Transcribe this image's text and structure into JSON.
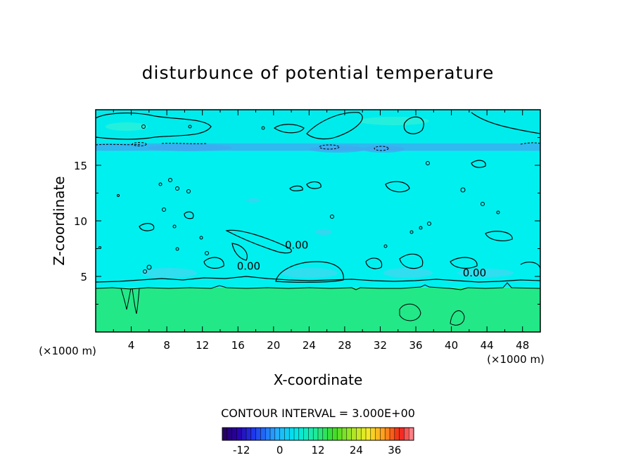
{
  "chart_data": {
    "type": "heatmap",
    "title": "disturbunce of potential temperature",
    "xlabel": "X-coordinate",
    "ylabel": "Z-coordinate",
    "x_unit": "(×1000 m)",
    "y_unit": "(×1000 m)",
    "xlim": [
      0,
      50
    ],
    "ylim": [
      0,
      20
    ],
    "x_ticks": [
      4,
      8,
      12,
      16,
      20,
      24,
      28,
      32,
      36,
      40,
      44,
      48
    ],
    "y_ticks": [
      5,
      10,
      15
    ],
    "contour_interval_label": "CONTOUR INTERVAL = 3.000E+00",
    "contour_labels": [
      {
        "text": "0.00",
        "x": 22.6,
        "z": 7.5
      },
      {
        "text": "0.00",
        "x": 17.2,
        "z": 5.6
      },
      {
        "text": "0.00",
        "x": 42.6,
        "z": 5.0
      }
    ],
    "colorbar": {
      "range": [
        -18,
        42
      ],
      "tick_values": [
        -12,
        0,
        12,
        24,
        36
      ],
      "tick_labels": [
        "-12",
        "0",
        "12",
        "24",
        "36"
      ]
    },
    "regions": [
      {
        "name": "lower layer",
        "z_range": [
          0,
          4
        ],
        "approx_value": 6,
        "color": "#22e888"
      },
      {
        "name": "mid layer",
        "z_range": [
          4,
          16.3
        ],
        "approx_value": 0,
        "color": "#00f0f0"
      },
      {
        "name": "tropopause band",
        "z_range": [
          16.3,
          17.0
        ],
        "approx_value": -3,
        "color": "#30b8f0"
      },
      {
        "name": "upper layer",
        "z_range": [
          17.0,
          20
        ],
        "approx_value": 0,
        "color": "#00ecec"
      }
    ],
    "colors": {
      "lower_layer": "#22e888",
      "mid_layer": "#00f0f0",
      "tropopause_band": "#30b8f0",
      "upper_layer": "#00ecec"
    }
  }
}
